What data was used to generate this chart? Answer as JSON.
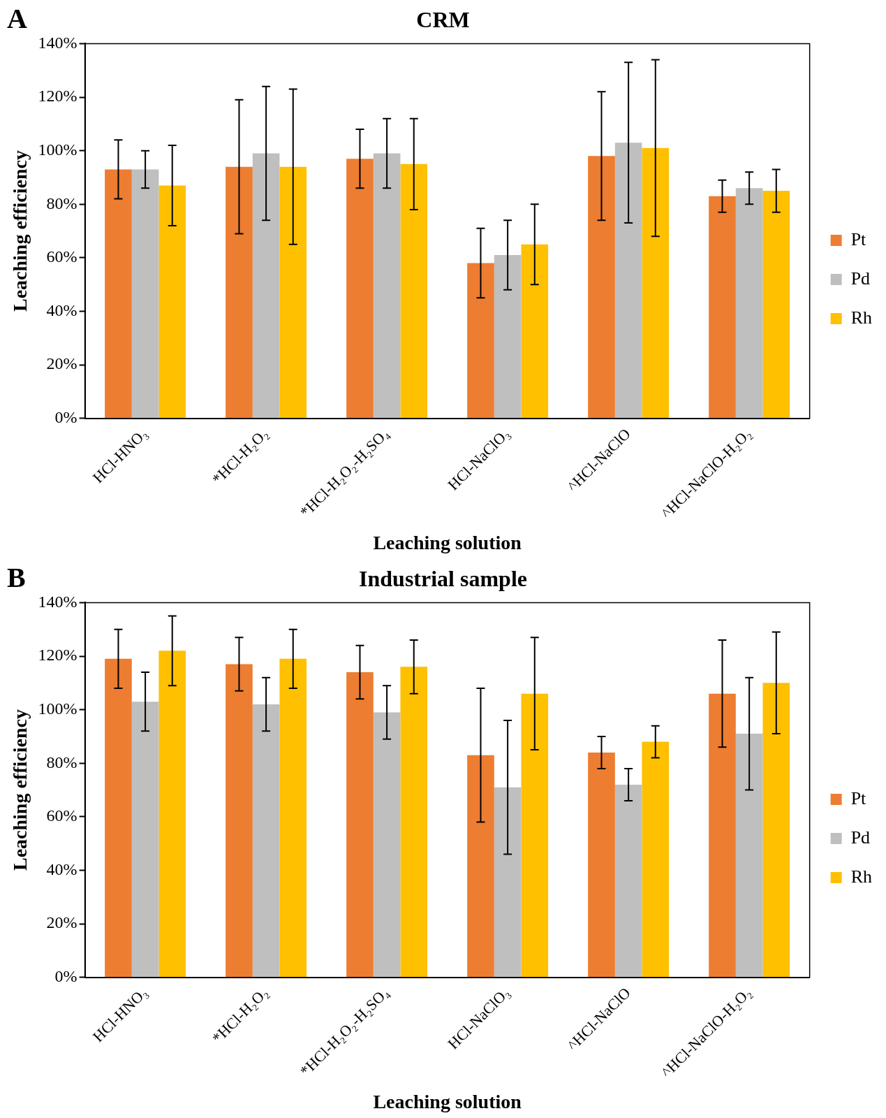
{
  "chart_data": [
    {
      "type": "bar",
      "title": "CRM",
      "xlabel": "Leaching solution",
      "ylabel": "Leaching efficiency",
      "annotations": [
        "A"
      ],
      "categories": [
        "HCl-HNO₃",
        "*HCl-H₂O₂",
        "*HCl-H₂O₂-H₂SO₄",
        "HCl-NaClO₃",
        "^HCl-NaClO",
        "^HCl-NaClO-H₂O₂"
      ],
      "series": [
        {
          "name": "Pt",
          "color": "#ed7d31",
          "values": [
            93,
            94,
            97,
            58,
            98,
            83
          ],
          "errors": [
            11,
            25,
            11,
            13,
            24,
            6
          ]
        },
        {
          "name": "Pd",
          "color": "#bfbfbf",
          "values": [
            93,
            99,
            99,
            61,
            103,
            86
          ],
          "errors": [
            7,
            25,
            13,
            13,
            30,
            6
          ]
        },
        {
          "name": "Rh",
          "color": "#ffc000",
          "values": [
            87,
            94,
            95,
            65,
            101,
            85
          ],
          "errors": [
            15,
            29,
            17,
            15,
            33,
            8
          ]
        }
      ],
      "ylim": [
        0,
        140
      ],
      "yticks": [
        {
          "value": 0,
          "label": "0%"
        },
        {
          "value": 20,
          "label": "20%"
        },
        {
          "value": 40,
          "label": "40%"
        },
        {
          "value": 60,
          "label": "60%"
        },
        {
          "value": 80,
          "label": "80%"
        },
        {
          "value": 100,
          "label": "100%"
        },
        {
          "value": 120,
          "label": "120%"
        },
        {
          "value": 140,
          "label": "140%"
        }
      ],
      "grid": false,
      "legend": "right"
    },
    {
      "type": "bar",
      "title": "Industrial sample",
      "xlabel": "Leaching solution",
      "ylabel": "Leaching efficiency",
      "annotations": [
        "B"
      ],
      "categories": [
        "HCl-HNO₃",
        "*HCl-H₂O₂",
        "*HCl-H₂O₂-H₂SO₄",
        "HCl-NaClO₃",
        "^HCl-NaClO",
        "^HCl-NaClO-H₂O₂"
      ],
      "series": [
        {
          "name": "Pt",
          "color": "#ed7d31",
          "values": [
            119,
            117,
            114,
            83,
            84,
            106
          ],
          "errors": [
            11,
            10,
            10,
            25,
            6,
            20
          ]
        },
        {
          "name": "Pd",
          "color": "#bfbfbf",
          "values": [
            103,
            102,
            99,
            71,
            72,
            91
          ],
          "errors": [
            11,
            10,
            10,
            25,
            6,
            21
          ]
        },
        {
          "name": "Rh",
          "color": "#ffc000",
          "values": [
            122,
            119,
            116,
            106,
            88,
            110
          ],
          "errors": [
            13,
            11,
            10,
            21,
            6,
            19
          ]
        }
      ],
      "ylim": [
        0,
        140
      ],
      "yticks": [
        {
          "value": 0,
          "label": "0%"
        },
        {
          "value": 20,
          "label": "20%"
        },
        {
          "value": 40,
          "label": "40%"
        },
        {
          "value": 60,
          "label": "60%"
        },
        {
          "value": 80,
          "label": "80%"
        },
        {
          "value": 100,
          "label": "100%"
        },
        {
          "value": 120,
          "label": "120%"
        },
        {
          "value": 140,
          "label": "140%"
        }
      ],
      "grid": false,
      "legend": "right"
    }
  ]
}
